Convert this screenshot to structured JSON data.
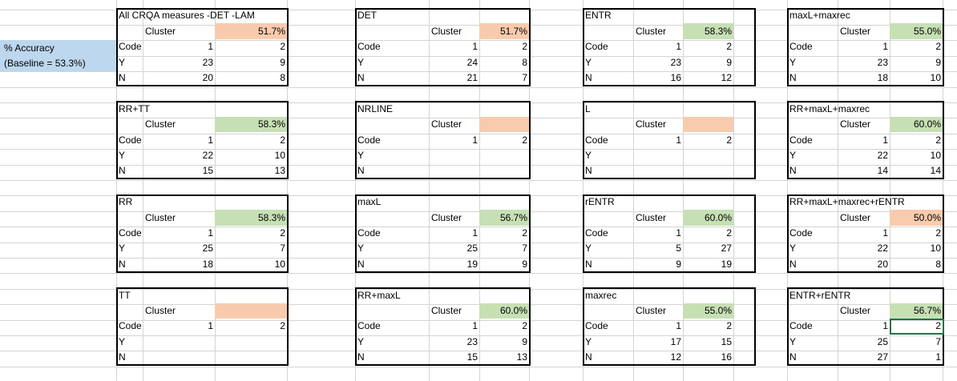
{
  "side_label": {
    "line1": "% Accuracy",
    "line2": "(Baseline = 53.3%)"
  },
  "boxes": [
    {
      "title": "All CRQA measures -DET -LAM",
      "cluster_label": "Cluster",
      "accuracy": "51.7%",
      "highlight": "#f8cbad",
      "rows": [
        [
          "Code",
          1,
          2
        ],
        [
          "Y",
          23,
          9
        ],
        [
          "N",
          20,
          8
        ]
      ]
    },
    {
      "title": "DET",
      "cluster_label": "Cluster",
      "accuracy": "51.7%",
      "highlight": "#f8cbad",
      "rows": [
        [
          "Code",
          1,
          2
        ],
        [
          "Y",
          24,
          8
        ],
        [
          "N",
          21,
          7
        ]
      ]
    },
    {
      "title": "ENTR",
      "cluster_label": "Cluster",
      "accuracy": "58.3%",
      "highlight": "#c6e0b4",
      "rows": [
        [
          "Code",
          1,
          2
        ],
        [
          "Y",
          23,
          9
        ],
        [
          "N",
          16,
          12
        ]
      ]
    },
    {
      "title": "maxL+maxrec",
      "cluster_label": "Cluster",
      "accuracy": "55.0%",
      "highlight": "#c6e0b4",
      "rows": [
        [
          "Code",
          1,
          2
        ],
        [
          "Y",
          23,
          9
        ],
        [
          "N",
          18,
          10
        ]
      ]
    },
    {
      "title": "RR+TT",
      "cluster_label": "Cluster",
      "accuracy": "58.3%",
      "highlight": "#c6e0b4",
      "rows": [
        [
          "Code",
          1,
          2
        ],
        [
          "Y",
          22,
          10
        ],
        [
          "N",
          15,
          13
        ]
      ]
    },
    {
      "title": "NRLINE",
      "cluster_label": "Cluster",
      "highlight": "#f8cbad",
      "rows": [
        [
          "Code",
          1,
          2
        ],
        [
          "Y"
        ],
        [
          "N"
        ]
      ]
    },
    {
      "title": "L",
      "cluster_label": "Cluster",
      "highlight": "#f8cbad",
      "rows": [
        [
          "Code",
          1,
          2
        ],
        [
          "Y"
        ],
        [
          "N"
        ]
      ]
    },
    {
      "title": "RR+maxL+maxrec",
      "cluster_label": "Cluster",
      "accuracy": "60.0%",
      "highlight": "#c6e0b4",
      "rows": [
        [
          "Code",
          1,
          2
        ],
        [
          "Y",
          22,
          10
        ],
        [
          "N",
          14,
          14
        ]
      ]
    },
    {
      "title": "RR",
      "cluster_label": "Cluster",
      "accuracy": "58.3%",
      "highlight": "#c6e0b4",
      "rows": [
        [
          "Code",
          1,
          2
        ],
        [
          "Y",
          25,
          7
        ],
        [
          "N",
          18,
          10
        ]
      ]
    },
    {
      "title": "maxL",
      "cluster_label": "Cluster",
      "accuracy": "56.7%",
      "highlight": "#c6e0b4",
      "rows": [
        [
          "Code",
          1,
          2
        ],
        [
          "Y",
          25,
          7
        ],
        [
          "N",
          19,
          9
        ]
      ]
    },
    {
      "title": "rENTR",
      "cluster_label": "Cluster",
      "accuracy": "60.0%",
      "highlight": "#c6e0b4",
      "rows": [
        [
          "Code",
          1,
          2
        ],
        [
          "Y",
          5,
          27
        ],
        [
          "N",
          9,
          19
        ]
      ]
    },
    {
      "title": "RR+maxL+maxrec+rENTR",
      "cluster_label": "Cluster",
      "accuracy": "50.0%",
      "highlight": "#f8cbad",
      "rows": [
        [
          "Code",
          1,
          2
        ],
        [
          "Y",
          22,
          10
        ],
        [
          "N",
          20,
          8
        ]
      ]
    },
    {
      "title": "TT",
      "cluster_label": "Cluster",
      "highlight": "#f8cbad",
      "rows": [
        [
          "Code",
          1,
          2
        ],
        [
          "Y"
        ],
        [
          "N"
        ]
      ]
    },
    {
      "title": "RR+maxL",
      "cluster_label": "Cluster",
      "accuracy": "60.0%",
      "highlight": "#c6e0b4",
      "rows": [
        [
          "Code",
          1,
          2
        ],
        [
          "Y",
          23,
          9
        ],
        [
          "N",
          15,
          13
        ]
      ]
    },
    {
      "title": "maxrec",
      "cluster_label": "Cluster",
      "accuracy": "55.0%",
      "highlight": "#c6e0b4",
      "rows": [
        [
          "Code",
          1,
          2
        ],
        [
          "Y",
          17,
          15
        ],
        [
          "N",
          12,
          16
        ]
      ]
    },
    {
      "title": "ENTR+rENTR",
      "cluster_label": "Cluster",
      "accuracy": "56.7%",
      "highlight": "#c6e0b4",
      "rows": [
        [
          "Code",
          1,
          2
        ],
        [
          "Y",
          25,
          7
        ],
        [
          "N",
          27,
          1
        ]
      ]
    }
  ]
}
